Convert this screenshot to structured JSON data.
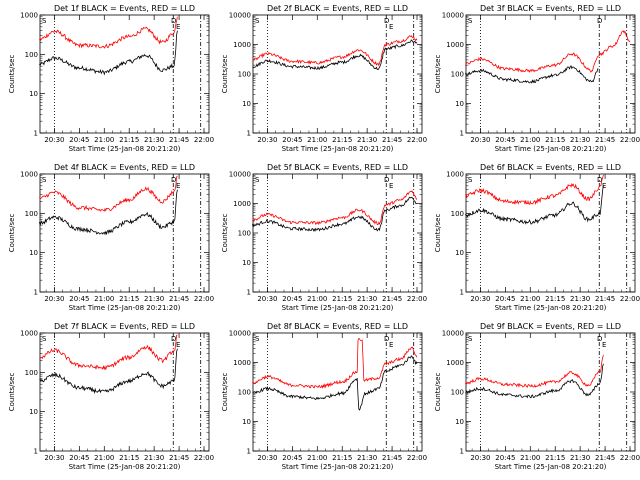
{
  "chart_data": [
    {
      "type": "line",
      "title": "Det 1f BLACK = Events, RED = LLD",
      "xlabel": "Start Time (25-Jan-08 20:21:20)",
      "ylabel": "Counts/sec",
      "x_ticks": [
        "20:30",
        "20:45",
        "21:00",
        "21:15",
        "21:30",
        "21:45",
        "22:00"
      ],
      "y_ticks": [
        "1",
        "10",
        "100",
        "1000"
      ],
      "ylim": [
        1,
        1000
      ],
      "y_scale": "log",
      "annotations": [
        "S",
        "D",
        "E"
      ],
      "series": [
        {
          "color": "#000000",
          "x": [
            "20:21",
            "20:30",
            "20:45",
            "21:00",
            "21:15",
            "21:25",
            "21:35",
            "21:42",
            "21:44"
          ],
          "y": [
            55,
            80,
            45,
            35,
            65,
            95,
            40,
            50,
            400
          ]
        },
        {
          "color": "#ff0000",
          "x": [
            "20:21",
            "20:30",
            "20:45",
            "21:00",
            "21:15",
            "21:25",
            "21:35",
            "21:42",
            "21:44"
          ],
          "y": [
            240,
            380,
            170,
            160,
            280,
            440,
            200,
            350,
            900
          ]
        }
      ]
    },
    {
      "type": "line",
      "title": "Det 2f BLACK = Events, RED = LLD",
      "xlabel": "Start Time (25-Jan-08 20:21:20)",
      "ylabel": "Counts/sec",
      "x_ticks": [
        "20:30",
        "20:45",
        "21:00",
        "21:15",
        "21:30",
        "21:45",
        "22:00"
      ],
      "y_ticks": [
        "1",
        "10",
        "100",
        "1000",
        "10000"
      ],
      "ylim": [
        1,
        10000
      ],
      "y_scale": "log",
      "annotations": [
        "S",
        "D",
        "E"
      ],
      "series": [
        {
          "color": "#000000",
          "x": [
            "20:21",
            "20:30",
            "20:45",
            "21:00",
            "21:15",
            "21:25",
            "21:37",
            "21:41",
            "21:50",
            "21:57",
            "22:00"
          ],
          "y": [
            180,
            280,
            180,
            160,
            250,
            420,
            150,
            700,
            900,
            1300,
            1100
          ]
        },
        {
          "color": "#ff0000",
          "x": [
            "20:21",
            "20:30",
            "20:45",
            "21:00",
            "21:15",
            "21:25",
            "21:37",
            "21:41",
            "21:50",
            "21:57",
            "22:00"
          ],
          "y": [
            300,
            480,
            270,
            240,
            380,
            650,
            220,
            1000,
            1300,
            1900,
            1400
          ]
        }
      ]
    },
    {
      "type": "line",
      "title": "Det 3f BLACK = Events, RED = LLD",
      "xlabel": "Start Time (25-Jan-08 20:21:20)",
      "ylabel": "Counts/sec",
      "x_ticks": [
        "20:30",
        "20:45",
        "21:00",
        "21:15",
        "21:30",
        "21:45",
        "22:00"
      ],
      "y_ticks": [
        "1",
        "10",
        "100",
        "1000",
        "10000"
      ],
      "ylim": [
        1,
        10000
      ],
      "y_scale": "log",
      "annotations": [
        "S",
        "D"
      ],
      "series": [
        {
          "color": "#000000",
          "x": [
            "20:21",
            "20:30",
            "20:45",
            "21:00",
            "21:15",
            "21:25",
            "21:37",
            "21:41"
          ],
          "y": [
            100,
            130,
            65,
            55,
            90,
            170,
            55,
            150
          ]
        },
        {
          "color": "#ff0000",
          "x": [
            "20:21",
            "20:30",
            "20:45",
            "21:00",
            "21:15",
            "21:25",
            "21:37",
            "21:41",
            "21:50",
            "21:56",
            "22:00"
          ],
          "y": [
            220,
            320,
            150,
            130,
            200,
            480,
            130,
            450,
            900,
            2800,
            1300
          ]
        }
      ]
    },
    {
      "type": "line",
      "title": "Det 4f BLACK = Events, RED = LLD",
      "xlabel": "Start Time (25-Jan-08 20:21:20)",
      "ylabel": "Counts/sec",
      "x_ticks": [
        "20:30",
        "20:45",
        "21:00",
        "21:15",
        "21:30",
        "21:45",
        "22:00"
      ],
      "y_ticks": [
        "1",
        "10",
        "100",
        "1000"
      ],
      "ylim": [
        1,
        1000
      ],
      "y_scale": "log",
      "annotations": [
        "S",
        "D",
        "E"
      ],
      "series": [
        {
          "color": "#000000",
          "x": [
            "20:21",
            "20:30",
            "20:45",
            "21:00",
            "21:15",
            "21:25",
            "21:35",
            "21:42",
            "21:44"
          ],
          "y": [
            55,
            80,
            40,
            32,
            60,
            95,
            45,
            60,
            400
          ]
        },
        {
          "color": "#ff0000",
          "x": [
            "20:21",
            "20:30",
            "20:45",
            "21:00",
            "21:15",
            "21:25",
            "21:35",
            "21:42",
            "21:44"
          ],
          "y": [
            240,
            340,
            140,
            120,
            220,
            420,
            200,
            350,
            900
          ]
        }
      ]
    },
    {
      "type": "line",
      "title": "Det 5f BLACK = Events, RED = LLD",
      "xlabel": "Start Time (25-Jan-08 20:21:20)",
      "ylabel": "Counts/sec",
      "x_ticks": [
        "20:30",
        "20:45",
        "21:00",
        "21:15",
        "21:30",
        "21:45",
        "22:00"
      ],
      "y_ticks": [
        "1",
        "10",
        "100",
        "1000",
        "10000"
      ],
      "ylim": [
        1,
        10000
      ],
      "y_scale": "log",
      "annotations": [
        "S",
        "D",
        "E"
      ],
      "series": [
        {
          "color": "#000000",
          "x": [
            "20:21",
            "20:30",
            "20:45",
            "21:00",
            "21:15",
            "21:25",
            "21:37",
            "21:41",
            "21:50",
            "21:57",
            "22:00"
          ],
          "y": [
            180,
            250,
            140,
            130,
            200,
            350,
            130,
            600,
            850,
            1600,
            1000
          ]
        },
        {
          "color": "#ff0000",
          "x": [
            "20:21",
            "20:30",
            "20:45",
            "21:00",
            "21:15",
            "21:25",
            "21:37",
            "21:41",
            "21:50",
            "21:57",
            "22:00"
          ],
          "y": [
            280,
            420,
            230,
            220,
            330,
            600,
            210,
            900,
            1300,
            2600,
            1400
          ]
        }
      ]
    },
    {
      "type": "line",
      "title": "Det 6f BLACK = Events, RED = LLD",
      "xlabel": "Start Time (25-Jan-08 20:21:20)",
      "ylabel": "Counts/sec",
      "x_ticks": [
        "20:30",
        "20:45",
        "21:00",
        "21:15",
        "21:30",
        "21:45",
        "22:00"
      ],
      "y_ticks": [
        "1",
        "10",
        "100",
        "1000"
      ],
      "ylim": [
        1,
        1000
      ],
      "y_scale": "log",
      "annotations": [
        "S",
        "D",
        "E"
      ],
      "series": [
        {
          "color": "#000000",
          "x": [
            "20:21",
            "20:30",
            "20:45",
            "21:00",
            "21:15",
            "21:25",
            "21:35",
            "21:42",
            "21:44"
          ],
          "y": [
            90,
            120,
            70,
            60,
            90,
            180,
            70,
            100,
            500
          ]
        },
        {
          "color": "#ff0000",
          "x": [
            "20:21",
            "20:30",
            "20:45",
            "21:00",
            "21:15",
            "21:25",
            "21:35",
            "21:42",
            "21:44"
          ],
          "y": [
            280,
            380,
            200,
            190,
            280,
            520,
            230,
            450,
            950
          ]
        }
      ]
    },
    {
      "type": "line",
      "title": "Det 7f BLACK = Events, RED = LLD",
      "xlabel": "Start Time (25-Jan-08 20:21:20)",
      "ylabel": "Counts/sec",
      "x_ticks": [
        "20:30",
        "20:45",
        "21:00",
        "21:15",
        "21:30",
        "21:45",
        "22:00"
      ],
      "y_ticks": [
        "1",
        "10",
        "100",
        "1000"
      ],
      "ylim": [
        1,
        1000
      ],
      "y_scale": "log",
      "annotations": [
        "S",
        "D",
        "E"
      ],
      "series": [
        {
          "color": "#000000",
          "x": [
            "20:21",
            "20:30",
            "20:45",
            "21:00",
            "21:15",
            "21:25",
            "21:35",
            "21:42",
            "21:44"
          ],
          "y": [
            60,
            85,
            40,
            32,
            60,
            95,
            45,
            60,
            400
          ]
        },
        {
          "color": "#ff0000",
          "x": [
            "20:21",
            "20:30",
            "20:45",
            "21:00",
            "21:15",
            "21:25",
            "21:35",
            "21:42",
            "21:44"
          ],
          "y": [
            240,
            360,
            150,
            130,
            240,
            440,
            200,
            350,
            900
          ]
        }
      ]
    },
    {
      "type": "line",
      "title": "Det 8f BLACK = Events, RED = LLD",
      "xlabel": "Start Time (25-Jan-08 20:21:20)",
      "ylabel": "Counts/sec",
      "x_ticks": [
        "20:30",
        "20:45",
        "21:00",
        "21:15",
        "21:30",
        "21:45",
        "22:00"
      ],
      "y_ticks": [
        "1",
        "10",
        "100",
        "1000",
        "10000"
      ],
      "ylim": [
        1,
        10000
      ],
      "y_scale": "log",
      "annotations": [
        "S",
        "D",
        "E"
      ],
      "series": [
        {
          "color": "#000000",
          "x": [
            "20:21",
            "20:30",
            "20:45",
            "21:00",
            "21:15",
            "21:24",
            "21:25",
            "21:29",
            "21:37",
            "21:41",
            "21:50",
            "21:57",
            "22:00"
          ],
          "y": [
            90,
            130,
            70,
            60,
            90,
            280,
            25,
            90,
            130,
            500,
            800,
            1600,
            900
          ]
        },
        {
          "color": "#ff0000",
          "x": [
            "20:21",
            "20:30",
            "20:45",
            "21:00",
            "21:15",
            "21:24",
            "21:24.5",
            "21:27",
            "21:28",
            "21:37",
            "21:41",
            "21:50",
            "21:57",
            "22:00"
          ],
          "y": [
            200,
            330,
            170,
            150,
            220,
            480,
            6000,
            6000,
            250,
            300,
            900,
            1300,
            3200,
            1500
          ]
        }
      ]
    },
    {
      "type": "line",
      "title": "Det 9f BLACK = Events, RED = LLD",
      "xlabel": "Start Time (25-Jan-08 20:21:20)",
      "ylabel": "Counts/sec",
      "x_ticks": [
        "20:30",
        "20:45",
        "21:00",
        "21:15",
        "21:30",
        "21:45",
        "22:00"
      ],
      "y_ticks": [
        "1",
        "10",
        "100",
        "1000",
        "10000"
      ],
      "ylim": [
        1,
        10000
      ],
      "y_scale": "log",
      "annotations": [
        "S",
        "D",
        "E"
      ],
      "series": [
        {
          "color": "#000000",
          "x": [
            "20:21",
            "20:30",
            "20:45",
            "21:00",
            "21:15",
            "21:25",
            "21:35",
            "21:42",
            "21:44"
          ],
          "y": [
            100,
            130,
            80,
            70,
            110,
            240,
            80,
            200,
            900
          ]
        },
        {
          "color": "#ff0000",
          "x": [
            "20:21",
            "20:30",
            "20:45",
            "21:00",
            "21:15",
            "21:25",
            "21:35",
            "21:42",
            "21:44"
          ],
          "y": [
            200,
            280,
            180,
            160,
            220,
            450,
            170,
            500,
            1800
          ]
        }
      ]
    }
  ]
}
